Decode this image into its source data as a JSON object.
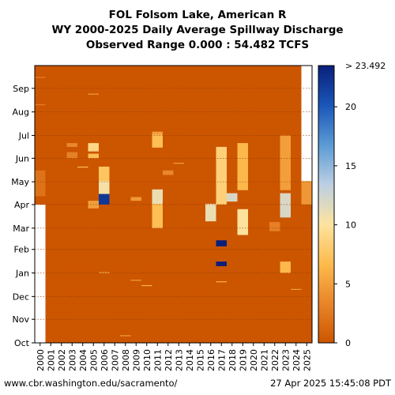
{
  "chart_data": {
    "type": "heatmap",
    "title_lines": [
      "FOL Folsom Lake, American R",
      "WY 2000-2025 Daily Average Spillway Discharge",
      "Observed Range 0.000 : 54.482 TCFS"
    ],
    "x_categories": [
      "2000",
      "2001",
      "2002",
      "2003",
      "2004",
      "2005",
      "2006",
      "2007",
      "2008",
      "2009",
      "2010",
      "2011",
      "2012",
      "2013",
      "2014",
      "2015",
      "2016",
      "2017",
      "2018",
      "2019",
      "2020",
      "2021",
      "2022",
      "2023",
      "2024",
      "2025"
    ],
    "y_months": [
      "Oct",
      "Nov",
      "Dec",
      "Jan",
      "Feb",
      "Mar",
      "Apr",
      "May",
      "Jun",
      "Jul",
      "Aug",
      "Sep"
    ],
    "units": "TCFS",
    "colorbar": {
      "min": 0,
      "max": 23.492,
      "ticks": [
        0,
        5,
        10,
        15,
        20
      ],
      "extend_label": "> 23.492",
      "stops": [
        "#cc5500",
        "#e8852a",
        "#fdbb4d",
        "#fde3a0",
        "#bccfe2",
        "#5b9ad4",
        "#1a56b8",
        "#0a1f7a"
      ]
    },
    "grid": true,
    "no_data_color": "#ffffff",
    "events": [
      {
        "year": "2000",
        "date": "Sep 15",
        "value": 3.0
      },
      {
        "year": "2000",
        "date": "Aug 10",
        "value": 3.0
      },
      {
        "year": "2000",
        "date": "Apr 12 - May 15",
        "value": 2.0
      },
      {
        "year": "2003",
        "date": "Jun 1 - Jun 8",
        "value": 3.0
      },
      {
        "year": "2003",
        "date": "Jun 16 - Jun 20",
        "value": 3.5
      },
      {
        "year": "2004",
        "date": "May 20",
        "value": 7.0
      },
      {
        "year": "2005",
        "date": "Aug 24",
        "value": 5.0
      },
      {
        "year": "2005",
        "date": "Jun 1 - Jun 6",
        "value": 7.0
      },
      {
        "year": "2005",
        "date": "Jun 10 - Jun 20",
        "value": 9.0
      },
      {
        "year": "2005",
        "date": "Mar 27 - Apr 5",
        "value": 5.0
      },
      {
        "year": "2006",
        "date": "May 1 - May 20",
        "value": 7.5
      },
      {
        "year": "2006",
        "date": "Apr 12 - May 1",
        "value": 10.5
      },
      {
        "year": "2006",
        "date": "Apr 1 - Apr 14",
        "value": 22.0
      },
      {
        "year": "2006",
        "date": "Jan 1",
        "value": 6.0
      },
      {
        "year": "2008",
        "date": "Oct 10",
        "value": 5.0
      },
      {
        "year": "2009",
        "date": "Apr 6 - Apr 10",
        "value": 4.5
      },
      {
        "year": "2009",
        "date": "Dec 22",
        "value": 5.0
      },
      {
        "year": "2010",
        "date": "Dec 15",
        "value": 6.0
      },
      {
        "year": "2011",
        "date": "Jul 1 - Jul 5",
        "value": 5.0
      },
      {
        "year": "2011",
        "date": "Jun 15 - Jul 1",
        "value": 7.0
      },
      {
        "year": "2011",
        "date": "Apr 1 - Apr 20",
        "value": 11.0
      },
      {
        "year": "2011",
        "date": "Mar 1 - Apr 1",
        "value": 7.0
      },
      {
        "year": "2012",
        "date": "May 10 - May 15",
        "value": 3.5
      },
      {
        "year": "2013",
        "date": "May 25",
        "value": 5.0
      },
      {
        "year": "2016",
        "date": "Mar 10 - Apr 1",
        "value": 11.0
      },
      {
        "year": "2017",
        "date": "Feb 5 - Feb 12",
        "value": 23.492
      },
      {
        "year": "2017",
        "date": "Jan 10 - Jan 15",
        "value": 23.492
      },
      {
        "year": "2017",
        "date": "Apr 1 - Jun 15",
        "value": 8.5
      },
      {
        "year": "2017",
        "date": "Dec 20",
        "value": 6.0
      },
      {
        "year": "2018",
        "date": "Apr 5 - Apr 15",
        "value": 12.0
      },
      {
        "year": "2019",
        "date": "Feb 20 - Mar 25",
        "value": 10.0
      },
      {
        "year": "2019",
        "date": "Apr 20 - Jun 20",
        "value": 6.5
      },
      {
        "year": "2022",
        "date": "Feb 25 - Mar 8",
        "value": 3.0
      },
      {
        "year": "2023",
        "date": "Mar 15 - Apr 15",
        "value": 12.0
      },
      {
        "year": "2023",
        "date": "Jan 1 - Jan 15",
        "value": 6.5
      },
      {
        "year": "2023",
        "date": "Apr 20 - Jun 30",
        "value": 5.0
      },
      {
        "year": "2024",
        "date": "Dec 10",
        "value": 5.0
      },
      {
        "year": "2025",
        "date": "Apr 1 - May 1",
        "value": 4.5
      }
    ]
  },
  "footer": {
    "left": "www.cbr.washington.edu/sacramento/",
    "right": "27 Apr 2025 15:45:08 PDT"
  }
}
